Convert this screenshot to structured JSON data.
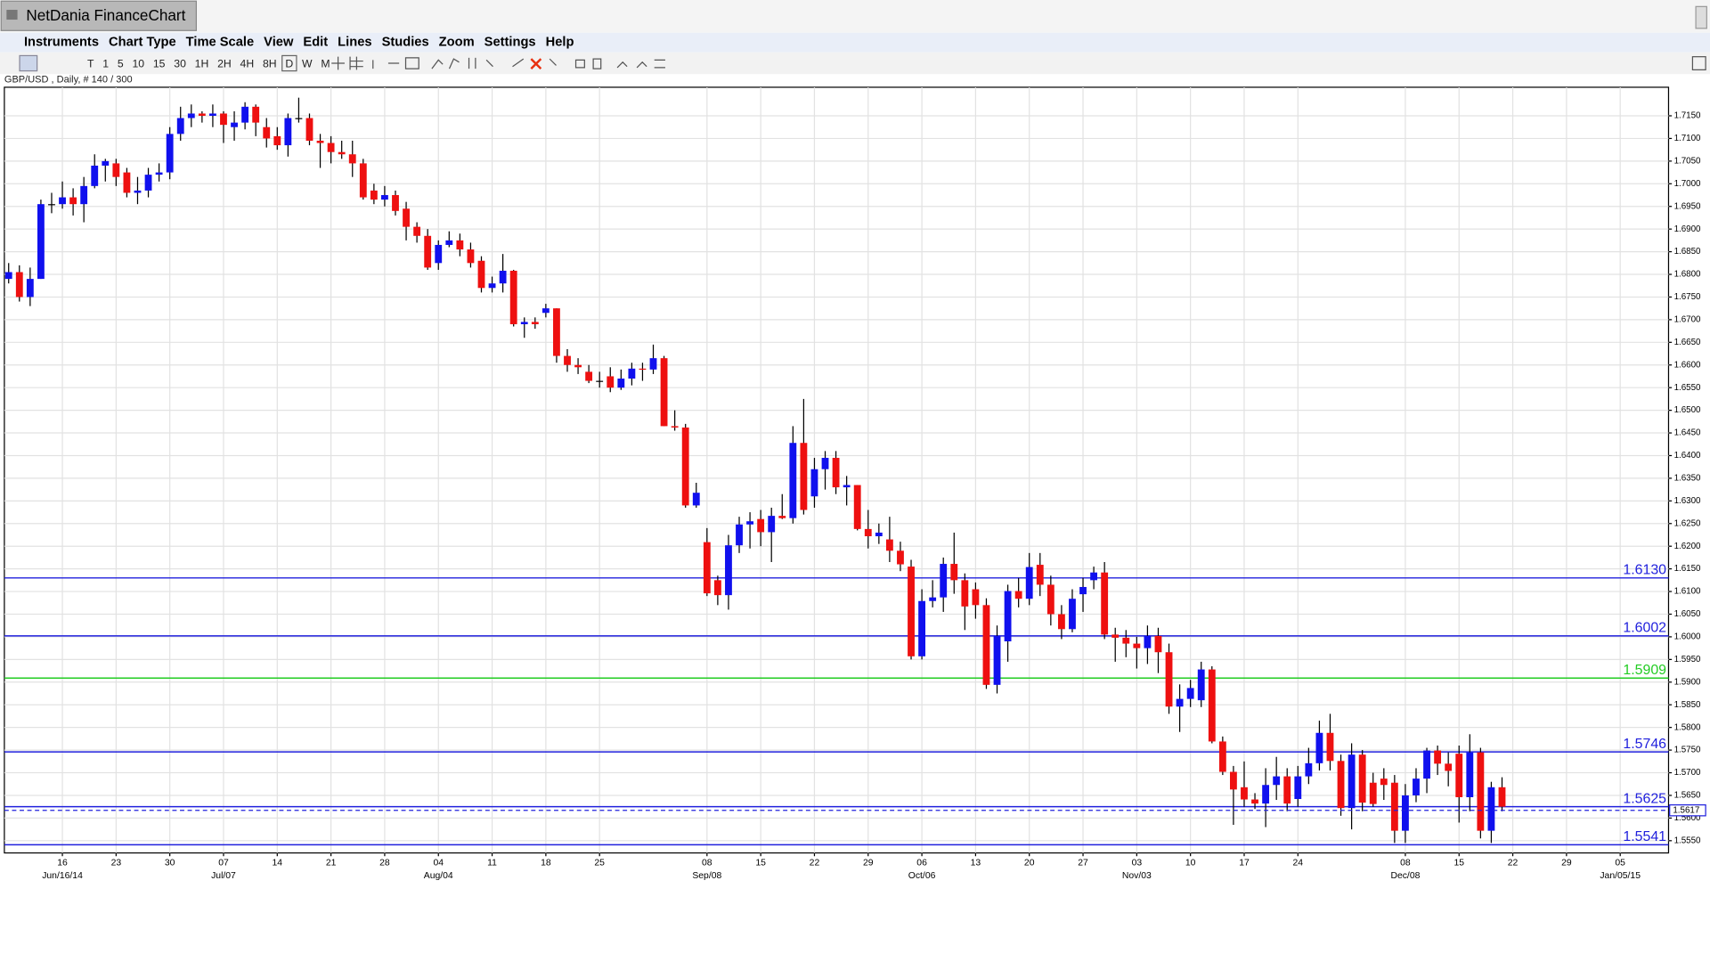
{
  "window": {
    "title": "NetDania FinanceChart"
  },
  "menu": [
    "Instruments",
    "Chart Type",
    "Time Scale",
    "View",
    "Edit",
    "Lines",
    "Studies",
    "Zoom",
    "Settings",
    "Help"
  ],
  "toolbar": [
    "T",
    "1",
    "5",
    "10",
    "15",
    "30",
    "1H",
    "2H",
    "4H",
    "8H",
    "D",
    "W",
    "M"
  ],
  "chart_data": {
    "type": "candlestick",
    "instrument_label": "GBP/USD , Daily, # 140 / 300",
    "up_color": "#1010ee",
    "down_color": "#ee1010",
    "grid": true,
    "xlim": [
      -0.4,
      154.5
    ],
    "ylim": [
      1.5523,
      1.7213
    ],
    "xticks": [
      {
        "value": 5,
        "label": "16",
        "sublabel": "Jun/16/14"
      },
      {
        "value": 10,
        "label": "23"
      },
      {
        "value": 15,
        "label": "30"
      },
      {
        "value": 20,
        "label": "07",
        "sublabel": "Jul/07"
      },
      {
        "value": 25,
        "label": "14"
      },
      {
        "value": 30,
        "label": "21"
      },
      {
        "value": 35,
        "label": "28"
      },
      {
        "value": 40,
        "label": "04",
        "sublabel": "Aug/04"
      },
      {
        "value": 45,
        "label": "11"
      },
      {
        "value": 50,
        "label": "18"
      },
      {
        "value": 55,
        "label": "25"
      },
      {
        "value": 65,
        "label": "08",
        "sublabel": "Sep/08"
      },
      {
        "value": 70,
        "label": "15"
      },
      {
        "value": 75,
        "label": "22"
      },
      {
        "value": 80,
        "label": "29"
      },
      {
        "value": 85,
        "label": "06",
        "sublabel": "Oct/06"
      },
      {
        "value": 90,
        "label": "13"
      },
      {
        "value": 95,
        "label": "20"
      },
      {
        "value": 100,
        "label": "27"
      },
      {
        "value": 105,
        "label": "03",
        "sublabel": "Nov/03"
      },
      {
        "value": 110,
        "label": "10"
      },
      {
        "value": 115,
        "label": "17"
      },
      {
        "value": 120,
        "label": "24"
      },
      {
        "value": 130,
        "label": "08",
        "sublabel": "Dec/08"
      },
      {
        "value": 135,
        "label": "15"
      },
      {
        "value": 140,
        "label": "22"
      },
      {
        "value": 145,
        "label": "29"
      },
      {
        "value": 150,
        "label": "05",
        "sublabel": "Jan/05/15"
      }
    ],
    "yticks": [
      {
        "value": 1.555,
        "label": "1.5550"
      },
      {
        "value": 1.56,
        "label": "1.5600"
      },
      {
        "value": 1.565,
        "label": "1.5650"
      },
      {
        "value": 1.57,
        "label": "1.5700"
      },
      {
        "value": 1.575,
        "label": "1.5750"
      },
      {
        "value": 1.58,
        "label": "1.5800"
      },
      {
        "value": 1.585,
        "label": "1.5850"
      },
      {
        "value": 1.59,
        "label": "1.5900"
      },
      {
        "value": 1.595,
        "label": "1.5950"
      },
      {
        "value": 1.6,
        "label": "1.6000"
      },
      {
        "value": 1.605,
        "label": "1.6050"
      },
      {
        "value": 1.61,
        "label": "1.6100"
      },
      {
        "value": 1.615,
        "label": "1.6150"
      },
      {
        "value": 1.62,
        "label": "1.6200"
      },
      {
        "value": 1.625,
        "label": "1.6250"
      },
      {
        "value": 1.63,
        "label": "1.6300"
      },
      {
        "value": 1.635,
        "label": "1.6350"
      },
      {
        "value": 1.64,
        "label": "1.6400"
      },
      {
        "value": 1.645,
        "label": "1.6450"
      },
      {
        "value": 1.65,
        "label": "1.6500"
      },
      {
        "value": 1.655,
        "label": "1.6550"
      },
      {
        "value": 1.66,
        "label": "1.6600"
      },
      {
        "value": 1.665,
        "label": "1.6650"
      },
      {
        "value": 1.67,
        "label": "1.6700"
      },
      {
        "value": 1.675,
        "label": "1.6750"
      },
      {
        "value": 1.68,
        "label": "1.6800"
      },
      {
        "value": 1.685,
        "label": "1.6850"
      },
      {
        "value": 1.69,
        "label": "1.6900"
      },
      {
        "value": 1.695,
        "label": "1.6950"
      },
      {
        "value": 1.7,
        "label": "1.7000"
      },
      {
        "value": 1.705,
        "label": "1.7050"
      },
      {
        "value": 1.71,
        "label": "1.7100"
      },
      {
        "value": 1.715,
        "label": "1.7150"
      }
    ],
    "lines": [
      {
        "value": 1.613,
        "label": "1.6130",
        "color": "#2020dd"
      },
      {
        "value": 1.6002,
        "label": "1.6002",
        "color": "#2020dd"
      },
      {
        "value": 1.5909,
        "label": "1.5909",
        "color": "#22cc22"
      },
      {
        "value": 1.5746,
        "label": "1.5746",
        "color": "#2020dd"
      },
      {
        "value": 1.5625,
        "label": "1.5625",
        "color": "#2020dd"
      },
      {
        "value": 1.5541,
        "label": "1.5541",
        "color": "#2020dd"
      }
    ],
    "current": {
      "value": 1.5617,
      "label": "1.5617",
      "color": "#2020dd"
    },
    "ohlc": [
      [
        1.679,
        1.6825,
        1.678,
        1.6805
      ],
      [
        1.6805,
        1.682,
        1.674,
        1.675
      ],
      [
        1.675,
        1.6815,
        1.673,
        1.679
      ],
      [
        1.679,
        1.6965,
        1.679,
        1.6955
      ],
      [
        1.6955,
        1.698,
        1.6935,
        1.6955
      ],
      [
        1.6955,
        1.7005,
        1.6945,
        1.697
      ],
      [
        1.697,
        1.699,
        1.693,
        1.6955
      ],
      [
        1.6955,
        1.7015,
        1.6915,
        1.6995
      ],
      [
        1.6995,
        1.7065,
        1.699,
        1.704
      ],
      [
        1.704,
        1.7055,
        1.7005,
        1.705
      ],
      [
        1.7045,
        1.7055,
        1.6995,
        1.7015
      ],
      [
        1.7025,
        1.7035,
        1.697,
        1.698
      ],
      [
        1.698,
        1.7015,
        1.6955,
        1.6985
      ],
      [
        1.6985,
        1.7035,
        1.697,
        1.702
      ],
      [
        1.702,
        1.7045,
        1.7005,
        1.7025
      ],
      [
        1.7025,
        1.7125,
        1.701,
        1.711
      ],
      [
        1.711,
        1.717,
        1.7095,
        1.7145
      ],
      [
        1.7145,
        1.7175,
        1.7125,
        1.7155
      ],
      [
        1.7155,
        1.716,
        1.7135,
        1.715
      ],
      [
        1.715,
        1.7175,
        1.7125,
        1.7155
      ],
      [
        1.7155,
        1.716,
        1.709,
        1.713
      ],
      [
        1.7125,
        1.716,
        1.7095,
        1.7135
      ],
      [
        1.7135,
        1.718,
        1.712,
        1.717
      ],
      [
        1.717,
        1.7175,
        1.7105,
        1.7135
      ],
      [
        1.7125,
        1.7145,
        1.708,
        1.71
      ],
      [
        1.7105,
        1.7125,
        1.7075,
        1.7085
      ],
      [
        1.7085,
        1.7155,
        1.706,
        1.7145
      ],
      [
        1.7145,
        1.719,
        1.7135,
        1.7145
      ],
      [
        1.7145,
        1.7155,
        1.7085,
        1.7095
      ],
      [
        1.7095,
        1.711,
        1.7035,
        1.709
      ],
      [
        1.709,
        1.7105,
        1.7045,
        1.707
      ],
      [
        1.707,
        1.7095,
        1.7055,
        1.7065
      ],
      [
        1.7065,
        1.7095,
        1.7015,
        1.7045
      ],
      [
        1.7045,
        1.7055,
        1.6965,
        1.697
      ],
      [
        1.6985,
        1.7,
        1.6955,
        1.6965
      ],
      [
        1.6965,
        1.6995,
        1.695,
        1.6975
      ],
      [
        1.6975,
        1.6985,
        1.693,
        1.694
      ],
      [
        1.6945,
        1.696,
        1.6875,
        1.6905
      ],
      [
        1.6905,
        1.6915,
        1.687,
        1.6885
      ],
      [
        1.6885,
        1.69,
        1.681,
        1.6815
      ],
      [
        1.6825,
        1.6875,
        1.681,
        1.6865
      ],
      [
        1.6865,
        1.6895,
        1.686,
        1.6875
      ],
      [
        1.6875,
        1.689,
        1.684,
        1.6855
      ],
      [
        1.6855,
        1.687,
        1.6815,
        1.6825
      ],
      [
        1.683,
        1.684,
        1.676,
        1.677
      ],
      [
        1.677,
        1.6795,
        1.676,
        1.678
      ],
      [
        1.678,
        1.6845,
        1.676,
        1.6808
      ],
      [
        1.6808,
        1.681,
        1.6685,
        1.669
      ],
      [
        1.669,
        1.6705,
        1.666,
        1.6695
      ],
      [
        1.6695,
        1.6705,
        1.668,
        1.669
      ],
      [
        1.6715,
        1.6735,
        1.6705,
        1.6725
      ],
      [
        1.6725,
        1.6725,
        1.6605,
        1.662
      ],
      [
        1.662,
        1.6635,
        1.6585,
        1.66
      ],
      [
        1.66,
        1.6615,
        1.658,
        1.6595
      ],
      [
        1.6585,
        1.66,
        1.656,
        1.6565
      ],
      [
        1.6565,
        1.6585,
        1.655,
        1.6565
      ],
      [
        1.6575,
        1.6595,
        1.654,
        1.655
      ],
      [
        1.655,
        1.659,
        1.6545,
        1.657
      ],
      [
        1.657,
        1.6605,
        1.6555,
        1.6592
      ],
      [
        1.6592,
        1.6605,
        1.6565,
        1.659
      ],
      [
        1.659,
        1.6645,
        1.658,
        1.6615
      ],
      [
        1.6615,
        1.662,
        1.6465,
        1.6465
      ],
      [
        1.6465,
        1.65,
        1.6455,
        1.6462
      ],
      [
        1.6462,
        1.647,
        1.6285,
        1.629
      ],
      [
        1.629,
        1.634,
        1.6285,
        1.6318
      ],
      [
        1.6209,
        1.624,
        1.609,
        1.6096
      ],
      [
        1.6125,
        1.6135,
        1.607,
        1.6092
      ],
      [
        1.6092,
        1.6225,
        1.606,
        1.6202
      ],
      [
        1.6202,
        1.6265,
        1.6185,
        1.6248
      ],
      [
        1.6248,
        1.6275,
        1.6195,
        1.6255
      ],
      [
        1.626,
        1.628,
        1.62,
        1.6231
      ],
      [
        1.6231,
        1.6285,
        1.6165,
        1.6267
      ],
      [
        1.6267,
        1.6315,
        1.626,
        1.6262
      ],
      [
        1.6262,
        1.6465,
        1.625,
        1.6428
      ],
      [
        1.6428,
        1.6525,
        1.627,
        1.628
      ],
      [
        1.631,
        1.6395,
        1.6285,
        1.637
      ],
      [
        1.637,
        1.641,
        1.6325,
        1.6395
      ],
      [
        1.6395,
        1.641,
        1.6315,
        1.633
      ],
      [
        1.633,
        1.6355,
        1.629,
        1.6335
      ],
      [
        1.6335,
        1.6335,
        1.6235,
        1.6238
      ],
      [
        1.6238,
        1.628,
        1.6195,
        1.6222
      ],
      [
        1.6222,
        1.625,
        1.6205,
        1.623
      ],
      [
        1.6215,
        1.6265,
        1.6165,
        1.619
      ],
      [
        1.619,
        1.621,
        1.6145,
        1.616
      ],
      [
        1.6155,
        1.617,
        1.595,
        1.5957
      ],
      [
        1.5957,
        1.6105,
        1.595,
        1.6079
      ],
      [
        1.6079,
        1.6125,
        1.6065,
        1.6087
      ],
      [
        1.6087,
        1.6175,
        1.6055,
        1.6161
      ],
      [
        1.6161,
        1.623,
        1.6095,
        1.6125
      ],
      [
        1.6125,
        1.614,
        1.6015,
        1.6067
      ],
      [
        1.6105,
        1.612,
        1.604,
        1.607
      ],
      [
        1.607,
        1.6085,
        1.5885,
        1.5894
      ],
      [
        1.5894,
        1.6025,
        1.5875,
        1.6002
      ],
      [
        1.599,
        1.6115,
        1.5945,
        1.6101
      ],
      [
        1.6101,
        1.613,
        1.6065,
        1.6084
      ],
      [
        1.6084,
        1.6185,
        1.607,
        1.6154
      ],
      [
        1.6159,
        1.6185,
        1.609,
        1.6115
      ],
      [
        1.6115,
        1.6135,
        1.6025,
        1.605
      ],
      [
        1.605,
        1.607,
        1.5995,
        1.6017
      ],
      [
        1.6017,
        1.6105,
        1.601,
        1.6084
      ],
      [
        1.6094,
        1.613,
        1.6055,
        1.611
      ],
      [
        1.6125,
        1.6155,
        1.6105,
        1.6142
      ],
      [
        1.6142,
        1.6165,
        1.5995,
        1.6005
      ],
      [
        1.6005,
        1.602,
        1.5945,
        1.5998
      ],
      [
        1.5998,
        1.6015,
        1.5955,
        1.5985
      ],
      [
        1.5985,
        1.6,
        1.593,
        1.5975
      ],
      [
        1.5975,
        1.6025,
        1.594,
        1.6002
      ],
      [
        1.6002,
        1.602,
        1.592,
        1.5966
      ],
      [
        1.5966,
        1.5985,
        1.583,
        1.5846
      ],
      [
        1.5846,
        1.5895,
        1.579,
        1.5863
      ],
      [
        1.5863,
        1.5905,
        1.5845,
        1.5887
      ],
      [
        1.586,
        1.5945,
        1.5845,
        1.5928
      ],
      [
        1.5928,
        1.5935,
        1.5765,
        1.5769
      ],
      [
        1.5769,
        1.578,
        1.5695,
        1.5702
      ],
      [
        1.5702,
        1.5715,
        1.5585,
        1.5663
      ],
      [
        1.5668,
        1.5725,
        1.5625,
        1.5641
      ],
      [
        1.5641,
        1.5655,
        1.562,
        1.5632
      ],
      [
        1.5632,
        1.571,
        1.558,
        1.5673
      ],
      [
        1.5673,
        1.5735,
        1.564,
        1.5692
      ],
      [
        1.5692,
        1.571,
        1.5615,
        1.5632
      ],
      [
        1.5642,
        1.5715,
        1.5625,
        1.5692
      ],
      [
        1.5692,
        1.5755,
        1.5675,
        1.5721
      ],
      [
        1.5721,
        1.5815,
        1.5705,
        1.5788
      ],
      [
        1.5788,
        1.583,
        1.5705,
        1.5726
      ],
      [
        1.5726,
        1.574,
        1.5605,
        1.5622
      ],
      [
        1.5622,
        1.5765,
        1.5575,
        1.574
      ],
      [
        1.574,
        1.575,
        1.5615,
        1.5634
      ],
      [
        1.5678,
        1.57,
        1.5625,
        1.5631
      ],
      [
        1.5687,
        1.571,
        1.564,
        1.5673
      ],
      [
        1.5678,
        1.5695,
        1.5545,
        1.5572
      ],
      [
        1.5572,
        1.5675,
        1.5545,
        1.565
      ],
      [
        1.565,
        1.571,
        1.5635,
        1.5687
      ],
      [
        1.5687,
        1.5755,
        1.5655,
        1.5749
      ],
      [
        1.5749,
        1.576,
        1.5695,
        1.572
      ],
      [
        1.572,
        1.5745,
        1.567,
        1.5704
      ],
      [
        1.5742,
        1.576,
        1.559,
        1.5646
      ],
      [
        1.5646,
        1.5785,
        1.5615,
        1.5745
      ],
      [
        1.5745,
        1.5755,
        1.5555,
        1.5572
      ],
      [
        1.5572,
        1.568,
        1.5545,
        1.5668
      ],
      [
        1.5668,
        1.569,
        1.5615,
        1.5625
      ]
    ]
  }
}
